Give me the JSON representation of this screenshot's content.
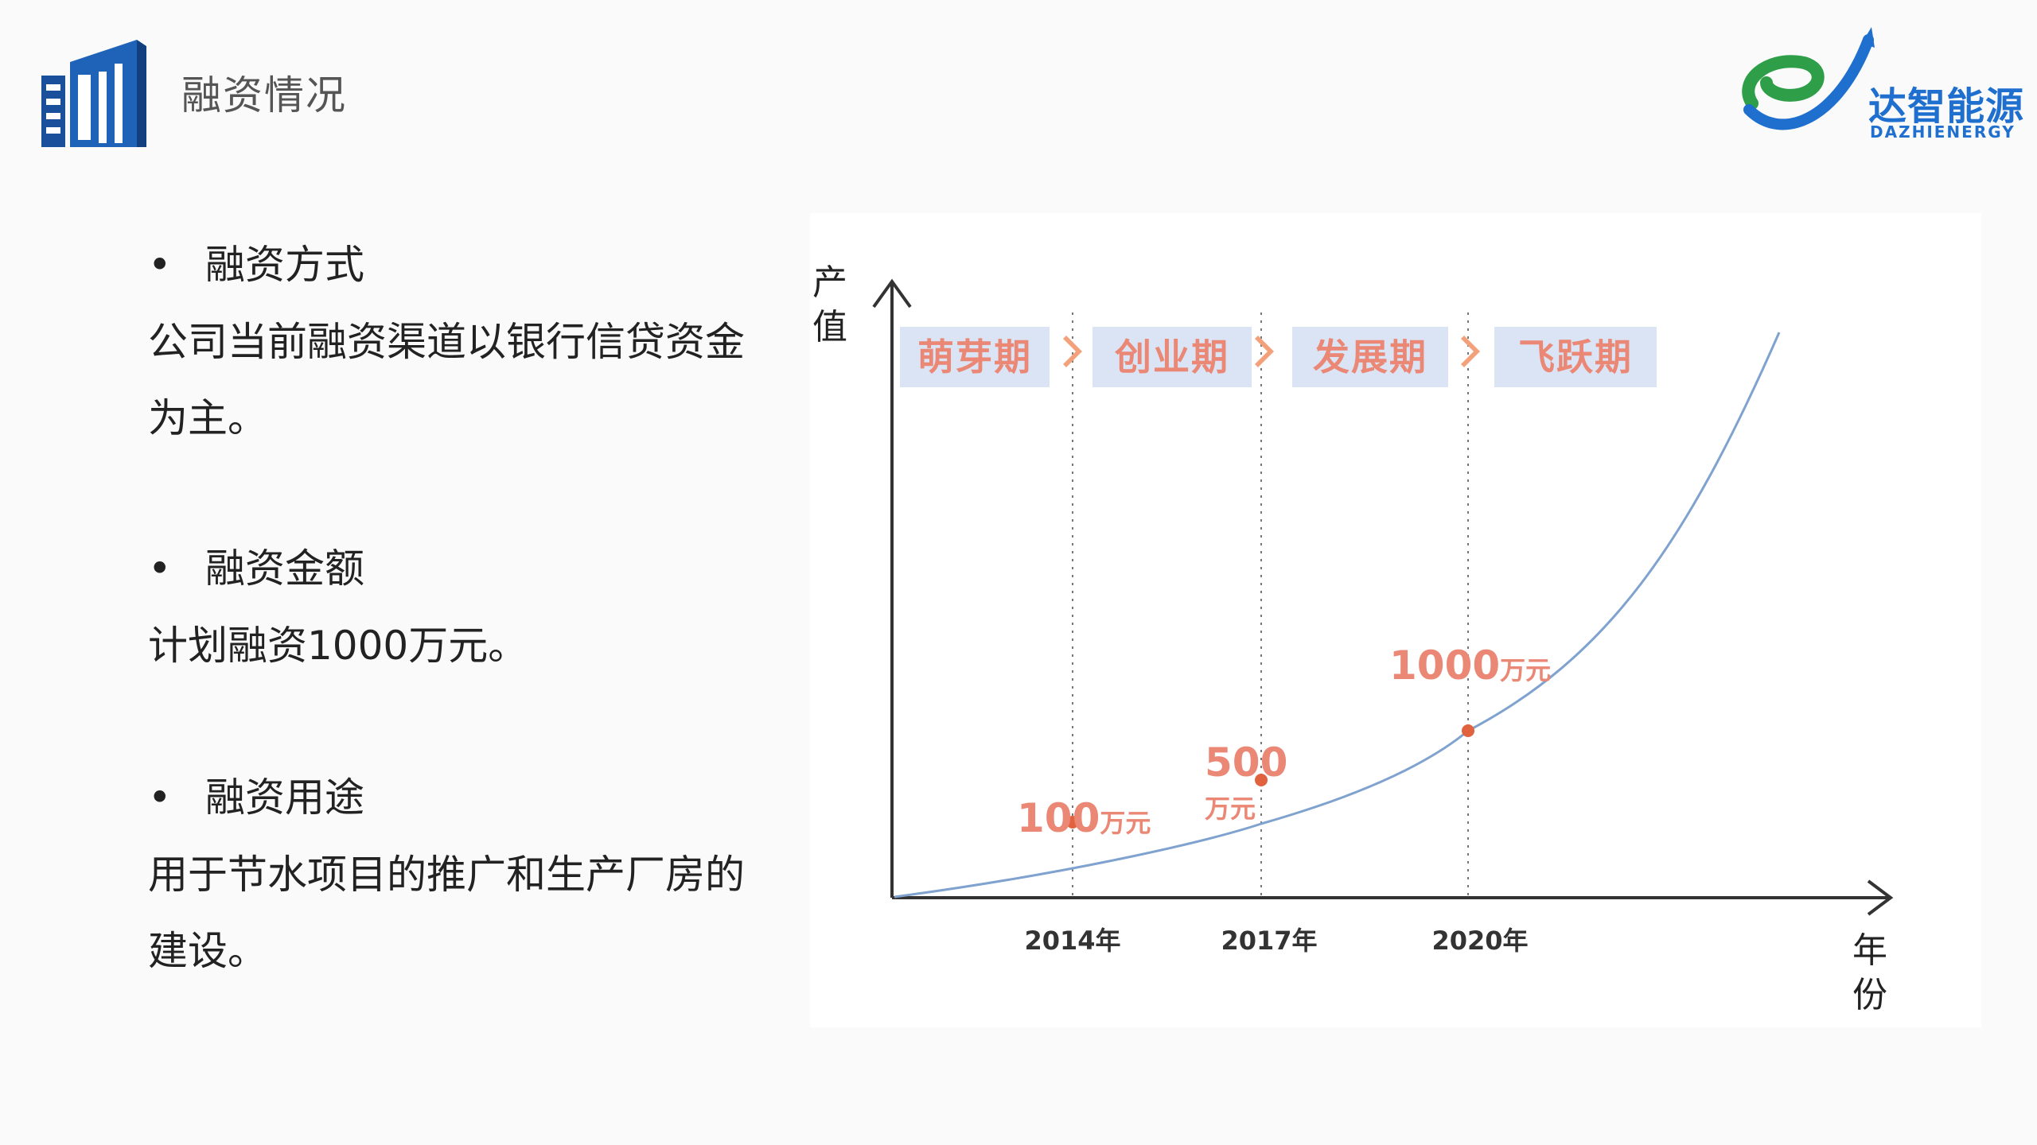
{
  "header": {
    "title": "融资情况",
    "icon": "building-icon"
  },
  "logo": {
    "name_cn": "达智能源",
    "name_en": "DAZHIENERGY",
    "colors": {
      "green": "#2e9e48",
      "blue": "#1f6fcf"
    }
  },
  "sections": [
    {
      "heading": "融资方式",
      "bullet": "•",
      "body": "公司当前融资渠道以银行信贷资金为主。"
    },
    {
      "heading": "融资金额",
      "bullet": "•",
      "body": "计划融资1000万元。"
    },
    {
      "heading": "融资用途",
      "bullet": "•",
      "body": "用于节水项目的推广和生产厂房的建设。"
    }
  ],
  "chart_data": {
    "type": "line",
    "ylabel": "产值",
    "xlabel": "年份",
    "stages": [
      "萌芽期",
      "创业期",
      "发展期",
      "飞跃期"
    ],
    "x_ticks": [
      "2014年",
      "2017年",
      "2020年"
    ],
    "points": [
      {
        "x": "2014年",
        "label_value": "100",
        "label_unit": "万元"
      },
      {
        "x": "2017年",
        "label_value": "500",
        "label_unit": "万元"
      },
      {
        "x": "2020年",
        "label_value": "1000",
        "label_unit": "万元"
      }
    ],
    "colors": {
      "curve": "#7fa2cf",
      "point": "#e0623e",
      "stage_bg": "#dbe4f4",
      "stage_text": "#ea8775",
      "arrow": "#f2a17a"
    },
    "grid": false
  }
}
